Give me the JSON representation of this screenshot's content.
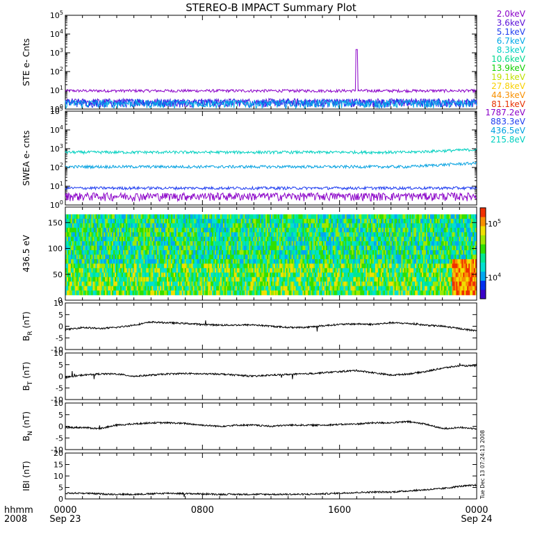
{
  "title": "STEREO-B IMPACT Summary Plot",
  "timestamp": "Tue Dec 13 07:24:13 2008",
  "x_axis": {
    "row1_label": "hhmm",
    "row2_label": "2008",
    "ticks": [
      {
        "hhmm": "0000",
        "date": "Sep 23"
      },
      {
        "hhmm": "0800",
        "date": ""
      },
      {
        "hhmm": "1600",
        "date": ""
      },
      {
        "hhmm": "0000",
        "date": "Sep 24"
      }
    ]
  },
  "colors": {
    "axes": "#000000",
    "line": "#000000"
  },
  "chart_data": [
    {
      "type": "line",
      "panel": "STE",
      "ylabel": "STE e- Cnts",
      "yscale": "log",
      "ylim": [
        1,
        100000
      ],
      "yticks": [
        {
          "base": "10",
          "exp": "0"
        },
        {
          "base": "10",
          "exp": "1"
        },
        {
          "base": "10",
          "exp": "2"
        },
        {
          "base": "10",
          "exp": "3"
        },
        {
          "base": "10",
          "exp": "4"
        },
        {
          "base": "10",
          "exp": "5"
        }
      ],
      "legend": [
        {
          "label": "2.0keV",
          "color": "#8a00c8"
        },
        {
          "label": "3.6keV",
          "color": "#5a10d8"
        },
        {
          "label": "5.1keV",
          "color": "#1e3cf0"
        },
        {
          "label": "6.7keV",
          "color": "#00a8e8"
        },
        {
          "label": "8.3keV",
          "color": "#00d0c8"
        },
        {
          "label": "10.6keV",
          "color": "#00d890"
        },
        {
          "label": "13.9keV",
          "color": "#10d000"
        },
        {
          "label": "19.1keV",
          "color": "#c0e000"
        },
        {
          "label": "27.8keV",
          "color": "#f8d000"
        },
        {
          "label": "44.3keV",
          "color": "#f89000"
        },
        {
          "label": "81.1keV",
          "color": "#e83000"
        }
      ],
      "series": [
        {
          "name": "2.0keV",
          "level": 9.5,
          "spike": {
            "x_hours": 17.0,
            "y": 1500
          }
        },
        {
          "name": "3.6keV",
          "level": 1.3
        },
        {
          "name": "5.1keV",
          "level": 1.2
        },
        {
          "name": "6.7keV",
          "level": 1.1
        }
      ]
    },
    {
      "type": "line",
      "panel": "SWEA",
      "ylabel": "SWEA e- cnts",
      "yscale": "log",
      "ylim": [
        1,
        100000
      ],
      "yticks": [
        {
          "base": "10",
          "exp": "0"
        },
        {
          "base": "10",
          "exp": "1"
        },
        {
          "base": "10",
          "exp": "2"
        },
        {
          "base": "10",
          "exp": "3"
        },
        {
          "base": "10",
          "exp": "4"
        },
        {
          "base": "10",
          "exp": "5"
        }
      ],
      "legend": [
        {
          "label": "1787.2eV",
          "color": "#8a00c8"
        },
        {
          "label": "883.3eV",
          "color": "#1e3cf0"
        },
        {
          "label": "436.5eV",
          "color": "#00a0e0"
        },
        {
          "label": "215.8eV",
          "color": "#00d0c0"
        }
      ],
      "series": [
        {
          "name": "215.8eV",
          "level": 650,
          "end_level": 900
        },
        {
          "name": "436.5eV",
          "level": 110,
          "end_level": 170
        },
        {
          "name": "883.3eV",
          "level": 8
        },
        {
          "name": "1787.2eV",
          "level": 1.6
        }
      ]
    },
    {
      "type": "heatmap",
      "panel": "pitch",
      "ylabel": "436.5 eV",
      "ylim": [
        0,
        180
      ],
      "yticks": [
        "0",
        "50",
        "100",
        "150"
      ],
      "colorbar": {
        "scale": "log",
        "range": [
          4000,
          200000
        ],
        "ticks": [
          {
            "base": "10",
            "exp": "4"
          },
          {
            "base": "10",
            "exp": "5"
          }
        ]
      }
    },
    {
      "type": "line",
      "panel": "BR",
      "ylabel_main": "B",
      "ylabel_sub": "R",
      "ylabel_unit": "(nT)",
      "ylim": [
        -10,
        10
      ],
      "yticks": [
        "-10",
        "-5",
        "0",
        "5",
        "10"
      ],
      "values_by_hour": [
        -1.5,
        -0.5,
        -1.0,
        -0.5,
        0.5,
        1.8,
        1.5,
        1.2,
        0.8,
        0.5,
        0.5,
        0.6,
        0.0,
        -0.5,
        -0.5,
        0.2,
        0.8,
        1.0,
        0.8,
        1.5,
        1.2,
        0.5,
        0.0,
        -1.0,
        -2.0
      ]
    },
    {
      "type": "line",
      "panel": "BT",
      "ylabel_main": "B",
      "ylabel_sub": "T",
      "ylabel_unit": "(nT)",
      "ylim": [
        -10,
        10
      ],
      "yticks": [
        "-10",
        "-5",
        "0",
        "5",
        "10"
      ],
      "values_by_hour": [
        -0.5,
        0.5,
        1.0,
        1.0,
        0.0,
        0.5,
        1.0,
        1.2,
        1.0,
        1.0,
        0.5,
        0.0,
        0.5,
        0.8,
        1.0,
        1.5,
        2.0,
        2.5,
        1.5,
        0.5,
        1.0,
        2.0,
        3.5,
        4.5,
        4.5
      ]
    },
    {
      "type": "line",
      "panel": "BN",
      "ylabel_main": "B",
      "ylabel_sub": "N",
      "ylabel_unit": "(nT)",
      "ylim": [
        -10,
        10
      ],
      "yticks": [
        "-10",
        "-5",
        "0",
        "5",
        "10"
      ],
      "values_by_hour": [
        -0.5,
        -0.5,
        -1.0,
        0.5,
        1.0,
        1.5,
        1.5,
        1.2,
        0.5,
        0.0,
        0.5,
        0.5,
        0.0,
        0.5,
        0.5,
        0.5,
        0.8,
        1.0,
        1.5,
        1.5,
        2.0,
        1.0,
        -1.0,
        -0.5,
        -1.0
      ]
    },
    {
      "type": "line",
      "panel": "Btot",
      "ylabel": "IBI (nT)",
      "ylim": [
        0,
        20
      ],
      "yticks": [
        "0",
        "5",
        "10",
        "15",
        "20"
      ],
      "values_by_hour": [
        2.5,
        2.5,
        2.2,
        2.0,
        2.0,
        2.2,
        2.5,
        2.3,
        2.2,
        2.0,
        2.0,
        2.0,
        2.0,
        2.0,
        2.0,
        2.2,
        2.5,
        2.8,
        3.0,
        3.0,
        3.5,
        4.0,
        4.5,
        5.5,
        6.0
      ]
    }
  ]
}
